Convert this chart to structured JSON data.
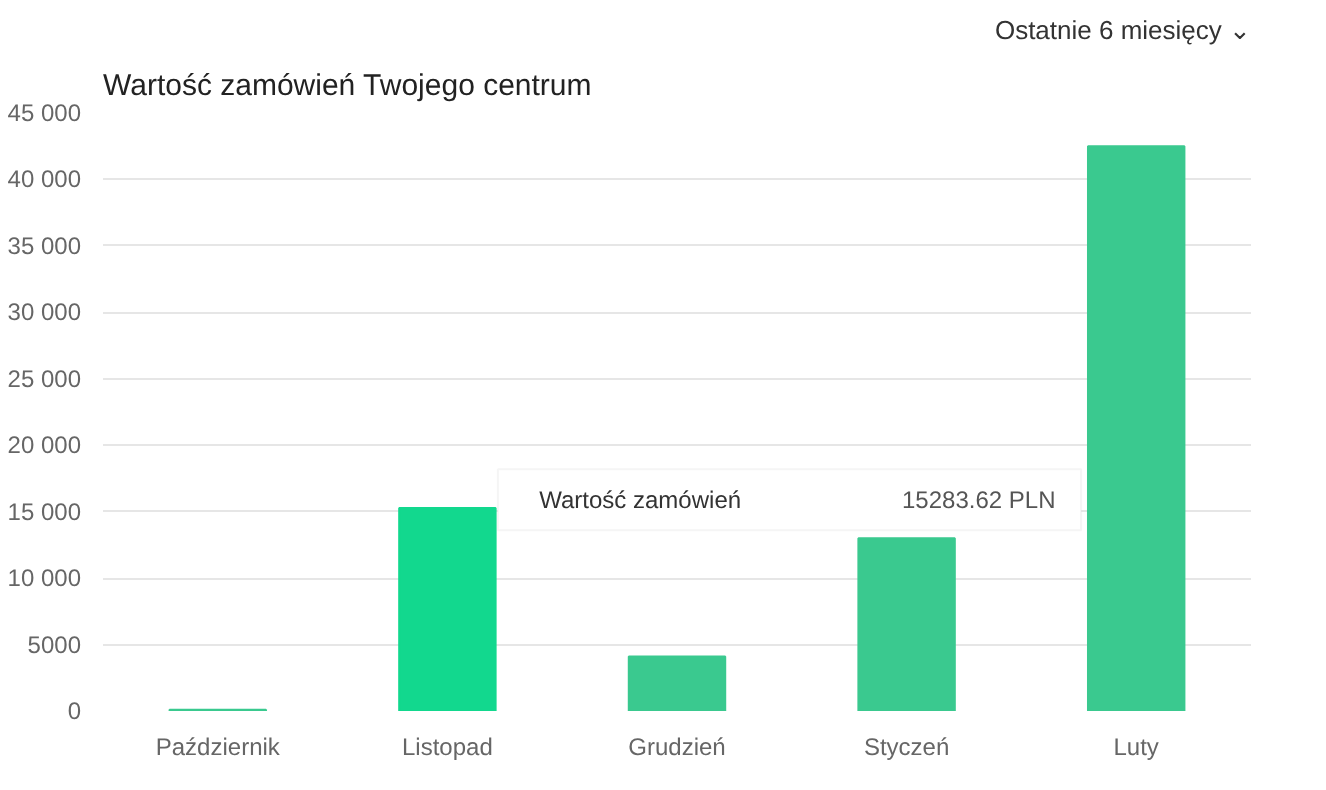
{
  "chart_data": {
    "type": "bar",
    "title": "Wartość zamówień Twojego centrum",
    "annotations": [
      "Ostatnie 6 miesięcy ⌄",
      "Wartość zamówień",
      "15283.62 PLN"
    ],
    "categories": [
      "Październik",
      "Listopad",
      "Grudzień",
      "Styczeń",
      "Luty"
    ],
    "values": [
      100,
      15283.62,
      4100,
      13000,
      42500
    ],
    "colors": [
      "#3ac98f",
      "#12d88e",
      "#3ac98f",
      "#3ac98f",
      "#3ac98f"
    ],
    "ylim": [
      0,
      45000
    ],
    "yticks": [
      {
        "value": 0,
        "label": "0"
      },
      {
        "value": 5000,
        "label": "5000"
      },
      {
        "value": 10000,
        "label": "10 000"
      },
      {
        "value": 15000,
        "label": "15 000"
      },
      {
        "value": 20000,
        "label": "20 000"
      },
      {
        "value": 25000,
        "label": "25 000"
      },
      {
        "value": 30000,
        "label": "30 000"
      },
      {
        "value": 35000,
        "label": "35 000"
      },
      {
        "value": 40000,
        "label": "40 000"
      },
      {
        "value": 45000,
        "label": "45 000"
      }
    ],
    "grid": "y"
  }
}
